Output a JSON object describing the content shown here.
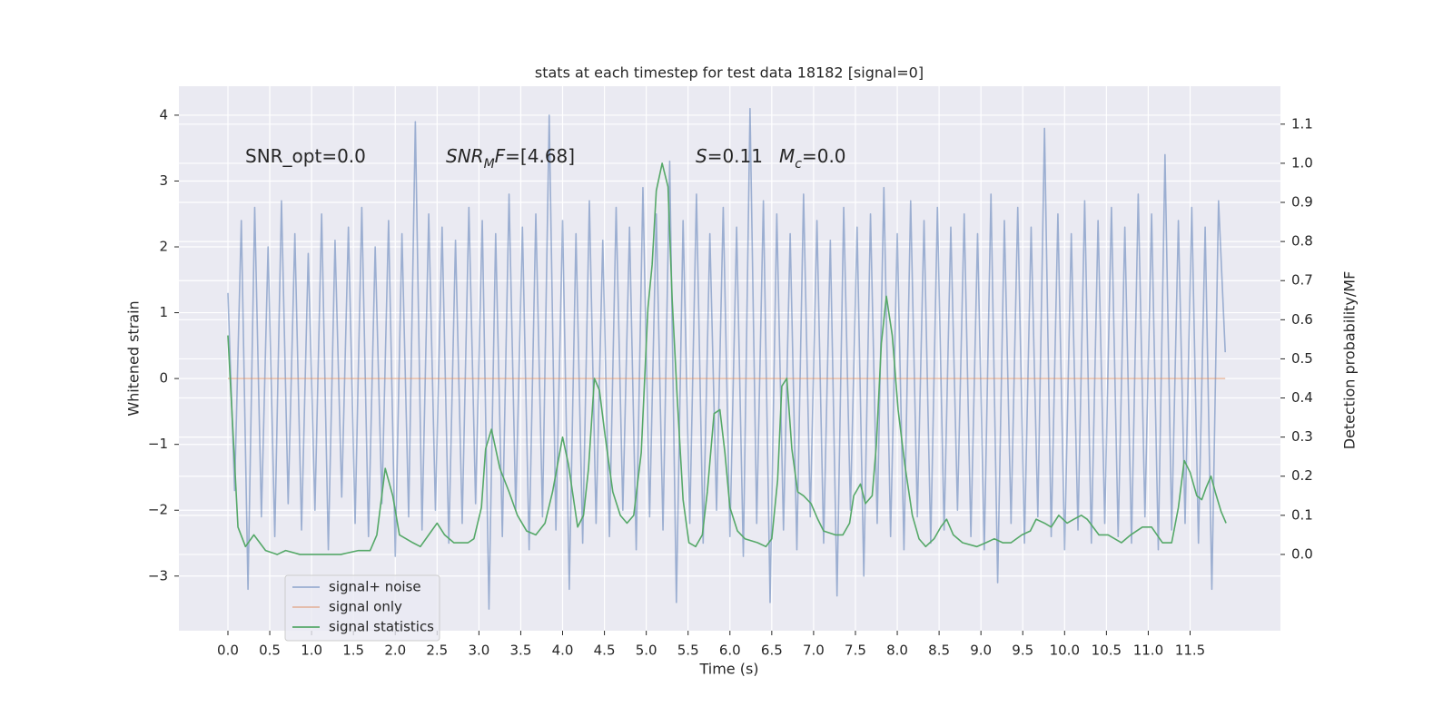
{
  "chart_data": {
    "type": "line",
    "title": "stats at each timestep for test data 18182 [signal=0]",
    "xlabel": "Time (s)",
    "ylabel": "Whitened strain",
    "y2label": "Detection probability/MF",
    "grid": true,
    "background": "#eaeaf2",
    "legend": "lower left",
    "annotations": [
      {
        "parts": [
          {
            "text": "SNR_opt=0.0"
          }
        ]
      },
      {
        "parts": [
          {
            "text": "SNR",
            "italic": true
          },
          {
            "text": "M",
            "italic": true,
            "sub": true
          },
          {
            "text": "F",
            "italic": true
          },
          {
            "text": "=[4.68]"
          }
        ]
      },
      {
        "parts": [
          {
            "text": "S",
            "italic": true
          },
          {
            "text": "=0.11"
          }
        ]
      },
      {
        "parts": [
          {
            "text": "M",
            "italic": true
          },
          {
            "text": "c",
            "italic": true,
            "sub": true
          },
          {
            "text": "=0.0"
          }
        ]
      }
    ],
    "xlim": [
      -0.586,
      12.58
    ],
    "ylim": [
      -3.83,
      4.44
    ],
    "y2lim": [
      -0.195,
      1.197
    ],
    "xticks": [
      {
        "value": 0,
        "label": "0.0"
      },
      0.5,
      {
        "value": 1,
        "label": "1.0"
      },
      1.5,
      {
        "value": 2,
        "label": "2.0"
      },
      2.5,
      {
        "value": 3,
        "label": "3.0"
      },
      3.5,
      {
        "value": 4,
        "label": "4.0"
      },
      4.5,
      {
        "value": 5,
        "label": "5.0"
      },
      5.5,
      {
        "value": 6,
        "label": "6.0"
      },
      6.5,
      {
        "value": 7,
        "label": "7.0"
      },
      7.5,
      {
        "value": 8,
        "label": "8.0"
      },
      8.5,
      {
        "value": 9,
        "label": "9.0"
      },
      9.5,
      {
        "value": 10,
        "label": "10.0"
      },
      10.5,
      {
        "value": 11,
        "label": "11.0"
      },
      11.5
    ],
    "yticks": [
      {
        "value": -3,
        "label": "−3"
      },
      {
        "value": -2,
        "label": "−2"
      },
      {
        "value": -1,
        "label": "−1"
      },
      0,
      1,
      2,
      3,
      4
    ],
    "y2ticks": [
      {
        "value": 0,
        "label": "0.0"
      },
      0.1,
      0.2,
      0.3,
      0.4,
      0.5,
      0.6,
      0.7,
      0.8,
      0.9,
      {
        "value": 1,
        "label": "1.0"
      },
      1.1
    ],
    "series": [
      {
        "name": "signal+ noise",
        "color": "#4c72b0",
        "opacity": 0.5,
        "x": [
          0,
          0.08,
          0.16,
          0.24,
          0.32,
          0.4,
          0.48,
          0.56,
          0.64,
          0.72,
          0.8,
          0.88,
          0.96,
          1.04,
          1.12,
          1.2,
          1.28,
          1.36,
          1.44,
          1.52,
          1.6,
          1.68,
          1.76,
          1.84,
          1.92,
          2,
          2.08,
          2.16,
          2.24,
          2.32,
          2.4,
          2.48,
          2.56,
          2.64,
          2.72,
          2.8,
          2.88,
          2.96,
          3.04,
          3.12,
          3.2,
          3.28,
          3.36,
          3.44,
          3.52,
          3.6,
          3.68,
          3.76,
          3.84,
          3.92,
          4,
          4.08,
          4.16,
          4.24,
          4.32,
          4.4,
          4.48,
          4.56,
          4.64,
          4.72,
          4.8,
          4.88,
          4.96,
          5.04,
          5.12,
          5.2,
          5.28,
          5.36,
          5.44,
          5.52,
          5.6,
          5.68,
          5.76,
          5.84,
          5.92,
          6,
          6.08,
          6.16,
          6.24,
          6.32,
          6.4,
          6.48,
          6.56,
          6.64,
          6.72,
          6.8,
          6.88,
          6.96,
          7.04,
          7.12,
          7.2,
          7.28,
          7.36,
          7.44,
          7.52,
          7.6,
          7.68,
          7.76,
          7.84,
          7.92,
          8,
          8.08,
          8.16,
          8.24,
          8.32,
          8.4,
          8.48,
          8.56,
          8.64,
          8.72,
          8.8,
          8.88,
          8.96,
          9.04,
          9.12,
          9.2,
          9.28,
          9.36,
          9.44,
          9.52,
          9.6,
          9.68,
          9.76,
          9.84,
          9.92,
          10,
          10.08,
          10.16,
          10.24,
          10.32,
          10.4,
          10.48,
          10.56,
          10.64,
          10.72,
          10.8,
          10.88,
          10.96,
          11.04,
          11.12,
          11.2,
          11.28,
          11.36,
          11.44,
          11.52,
          11.6,
          11.68,
          11.76,
          11.84,
          11.92
        ],
        "values": [
          1.3,
          -1.7,
          2.4,
          -3.2,
          2.6,
          -2.1,
          2.0,
          -2.4,
          2.7,
          -1.9,
          2.2,
          -2.3,
          1.9,
          -2.0,
          2.5,
          -2.6,
          2.1,
          -1.8,
          2.3,
          -2.2,
          2.6,
          -2.4,
          2.0,
          -1.9,
          2.4,
          -2.7,
          2.2,
          -2.1,
          3.9,
          -2.3,
          2.5,
          -2.0,
          2.3,
          -2.5,
          2.1,
          -2.2,
          2.6,
          -1.9,
          2.4,
          -3.5,
          2.2,
          -2.4,
          2.8,
          -2.0,
          2.3,
          -2.6,
          2.5,
          -2.1,
          4.0,
          -2.3,
          2.4,
          -3.2,
          2.2,
          -2.5,
          2.7,
          -2.2,
          2.1,
          -2.4,
          2.6,
          -2.0,
          2.3,
          -2.6,
          2.9,
          -2.1,
          2.5,
          -2.3,
          3.3,
          -3.4,
          2.4,
          -2.2,
          2.8,
          -2.5,
          2.2,
          -2.0,
          2.6,
          -2.4,
          2.3,
          -2.7,
          4.1,
          -2.2,
          2.7,
          -3.4,
          2.5,
          -2.3,
          2.2,
          -2.6,
          2.8,
          -2.1,
          2.4,
          -2.5,
          2.1,
          -3.3,
          2.6,
          -2.0,
          2.3,
          -3.0,
          2.5,
          -2.2,
          2.9,
          -2.4,
          2.2,
          -2.6,
          2.7,
          -2.1,
          2.4,
          -2.5,
          2.6,
          -2.3,
          2.3,
          -2.0,
          2.5,
          -2.4,
          2.2,
          -2.6,
          2.8,
          -3.1,
          2.4,
          -2.2,
          2.6,
          -2.5,
          2.3,
          -2.1,
          3.8,
          -2.4,
          2.5,
          -2.6,
          2.2,
          -2.3,
          2.7,
          -2.5,
          2.4,
          -2.2,
          2.6,
          -2.4,
          2.3,
          -2.5,
          2.8,
          -2.1,
          2.5,
          -2.6,
          3.4,
          -2.3,
          2.4,
          -2.2,
          2.6,
          -2.5,
          2.3,
          -3.2,
          2.7,
          0.4
        ]
      },
      {
        "name": "signal only",
        "color": "#dd8452",
        "opacity": 0.5,
        "x": [
          0,
          11.92
        ],
        "values": [
          0,
          0
        ]
      },
      {
        "name": "signal statistics",
        "color": "#55a868",
        "opacity": 1,
        "axis": "y2",
        "x": [
          0,
          0.12,
          0.21,
          0.31,
          0.45,
          0.59,
          0.69,
          0.86,
          1.07,
          1.35,
          1.56,
          1.7,
          1.78,
          1.88,
          1.97,
          2.05,
          2.21,
          2.3,
          2.4,
          2.5,
          2.59,
          2.7,
          2.87,
          2.94,
          3.03,
          3.08,
          3.15,
          3.25,
          3.36,
          3.46,
          3.57,
          3.68,
          3.79,
          3.88,
          4,
          4.07,
          4.18,
          4.25,
          4.31,
          4.38,
          4.44,
          4.51,
          4.6,
          4.69,
          4.77,
          4.85,
          4.94,
          5.02,
          5.07,
          5.12,
          5.19,
          5.26,
          5.31,
          5.37,
          5.44,
          5.51,
          5.59,
          5.67,
          5.73,
          5.81,
          5.88,
          5.94,
          6,
          6.09,
          6.18,
          6.33,
          6.43,
          6.5,
          6.57,
          6.62,
          6.68,
          6.74,
          6.81,
          6.88,
          6.97,
          7.05,
          7.12,
          7.26,
          7.35,
          7.43,
          7.48,
          7.56,
          7.62,
          7.7,
          7.75,
          7.81,
          7.87,
          7.94,
          8.01,
          8.09,
          8.18,
          8.26,
          8.34,
          8.44,
          8.52,
          8.59,
          8.67,
          8.78,
          8.95,
          9.06,
          9.16,
          9.26,
          9.36,
          9.49,
          9.59,
          9.66,
          9.76,
          9.84,
          9.93,
          10.03,
          10.11,
          10.2,
          10.27,
          10.41,
          10.52,
          10.68,
          10.79,
          10.93,
          11.04,
          11.17,
          11.28,
          11.36,
          11.43,
          11.5,
          11.58,
          11.64,
          11.69,
          11.75,
          11.8,
          11.87,
          11.93
        ],
        "values": [
          0.56,
          0.07,
          0.02,
          0.05,
          0.01,
          0,
          0.01,
          0,
          0,
          0,
          0.01,
          0.01,
          0.05,
          0.22,
          0.15,
          0.05,
          0.03,
          0.02,
          0.05,
          0.08,
          0.05,
          0.03,
          0.03,
          0.04,
          0.12,
          0.27,
          0.32,
          0.22,
          0.16,
          0.1,
          0.06,
          0.05,
          0.08,
          0.16,
          0.3,
          0.23,
          0.07,
          0.1,
          0.22,
          0.45,
          0.42,
          0.3,
          0.16,
          0.1,
          0.08,
          0.1,
          0.26,
          0.63,
          0.74,
          0.93,
          1,
          0.94,
          0.65,
          0.4,
          0.14,
          0.03,
          0.02,
          0.05,
          0.16,
          0.36,
          0.37,
          0.26,
          0.12,
          0.06,
          0.04,
          0.03,
          0.02,
          0.04,
          0.19,
          0.43,
          0.45,
          0.27,
          0.16,
          0.15,
          0.13,
          0.09,
          0.06,
          0.05,
          0.05,
          0.08,
          0.15,
          0.18,
          0.13,
          0.15,
          0.28,
          0.54,
          0.66,
          0.56,
          0.37,
          0.23,
          0.1,
          0.04,
          0.02,
          0.04,
          0.07,
          0.09,
          0.05,
          0.03,
          0.02,
          0.03,
          0.04,
          0.03,
          0.03,
          0.05,
          0.06,
          0.09,
          0.08,
          0.07,
          0.1,
          0.08,
          0.09,
          0.1,
          0.09,
          0.05,
          0.05,
          0.03,
          0.05,
          0.07,
          0.07,
          0.03,
          0.03,
          0.12,
          0.24,
          0.21,
          0.15,
          0.14,
          0.17,
          0.2,
          0.16,
          0.11,
          0.08
        ]
      }
    ]
  }
}
